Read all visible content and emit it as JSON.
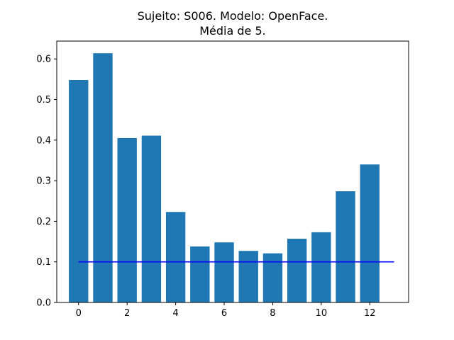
{
  "chart_data": {
    "type": "bar",
    "title_line1": "Sujeito: S006. Modelo: OpenFace.",
    "title_line2": "Média de 5.",
    "xlabel": "",
    "ylabel": "",
    "categories": [
      0,
      1,
      2,
      3,
      4,
      5,
      6,
      7,
      8,
      9,
      10,
      11,
      12
    ],
    "values": [
      0.548,
      0.614,
      0.405,
      0.411,
      0.223,
      0.138,
      0.148,
      0.127,
      0.121,
      0.157,
      0.173,
      0.274,
      0.34
    ],
    "bar_color": "#1f77b4",
    "reference_line": {
      "y": 0.1,
      "x_start": 0,
      "x_end": 13,
      "color": "#0000ff"
    },
    "xlim": [
      -0.9,
      13.6
    ],
    "ylim": [
      0,
      0.644
    ],
    "xticks": [
      "0",
      "2",
      "4",
      "6",
      "8",
      "10",
      "12"
    ],
    "yticks": [
      "0.0",
      "0.1",
      "0.2",
      "0.3",
      "0.4",
      "0.5",
      "0.6"
    ],
    "grid": false,
    "legend": "none"
  }
}
